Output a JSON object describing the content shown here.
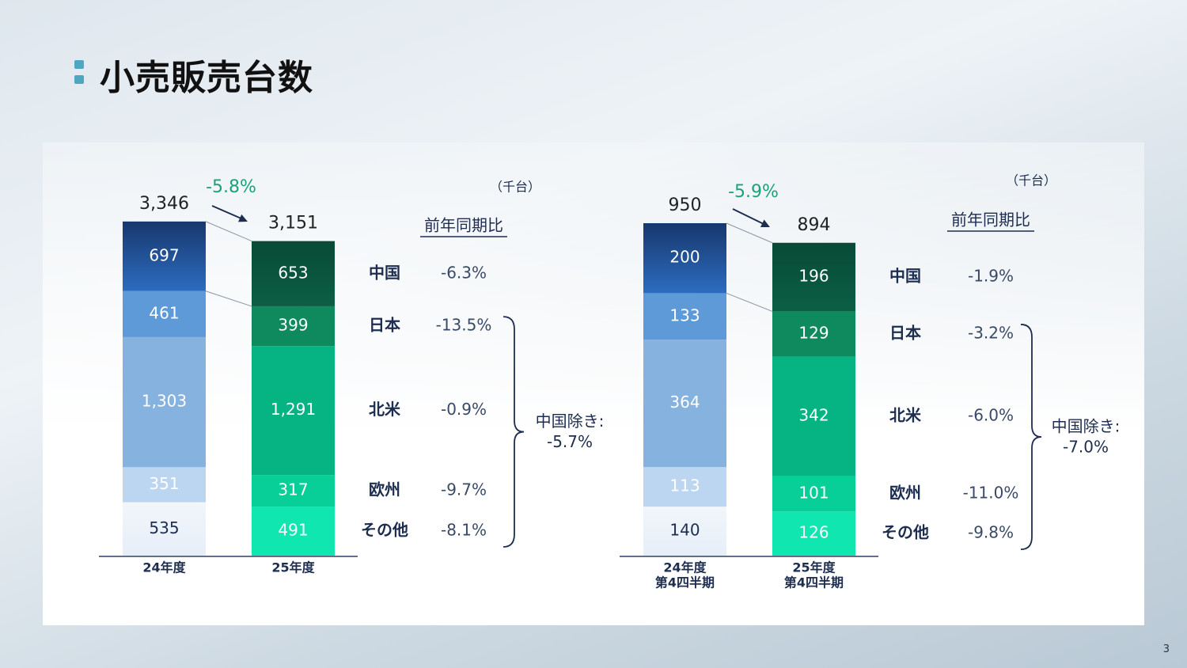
{
  "title": "小売販売台数",
  "page_number": "3",
  "colors": {
    "china_2024": "#2d6cc0",
    "japan_2024": "#5f9ad8",
    "na_2024": "#86b2e0",
    "eu_2024": "#bcd5f0",
    "other_2024": "#e6eef8",
    "china_2025": "#0b5f45",
    "japan_2025": "#0f8a5e",
    "na_2025": "#06b383",
    "eu_2025": "#08cf97",
    "other_2025": "#10e6b0",
    "accent_green": "#1aa37a",
    "label_navy": "#1d2d50"
  },
  "chart_data": [
    {
      "type": "bar",
      "stacked": true,
      "unit": "（千台）",
      "categories": [
        "24年度",
        "25年度"
      ],
      "segments": [
        "その他",
        "欧州",
        "北米",
        "日本",
        "中国"
      ],
      "series": [
        {
          "name": "中国",
          "values": [
            697,
            653
          ]
        },
        {
          "name": "日本",
          "values": [
            461,
            399
          ]
        },
        {
          "name": "北米",
          "values": [
            1303,
            1291
          ]
        },
        {
          "name": "欧州",
          "values": [
            351,
            317
          ]
        },
        {
          "name": "その他",
          "values": [
            535,
            491
          ]
        }
      ],
      "value_labels": {
        "中国": [
          "697",
          "653"
        ],
        "日本": [
          "461",
          "399"
        ],
        "北米": [
          "1,303",
          "1,291"
        ],
        "欧州": [
          "351",
          "317"
        ],
        "その他": [
          "535",
          "491"
        ]
      },
      "totals": [
        3346,
        3151
      ],
      "total_labels": [
        "3,346",
        "3,151"
      ],
      "change_label": "-5.8%",
      "yoy_header": "前年同期比",
      "yoy": [
        {
          "region": "中国",
          "value": "-6.3%"
        },
        {
          "region": "日本",
          "value": "-13.5%"
        },
        {
          "region": "北米",
          "value": "-0.9%"
        },
        {
          "region": "欧州",
          "value": "-9.7%"
        },
        {
          "region": "その他",
          "value": "-8.1%"
        }
      ],
      "excl_china_label": "中国除き:",
      "excl_china_value": "-5.7%"
    },
    {
      "type": "bar",
      "stacked": true,
      "unit": "（千台）",
      "categories": [
        "24年度\n第4四半期",
        "25年度\n第4四半期"
      ],
      "category_lines": [
        [
          "24年度",
          "第4四半期"
        ],
        [
          "25年度",
          "第4四半期"
        ]
      ],
      "series": [
        {
          "name": "中国",
          "values": [
            200,
            196
          ]
        },
        {
          "name": "日本",
          "values": [
            133,
            129
          ]
        },
        {
          "name": "北米",
          "values": [
            364,
            342
          ]
        },
        {
          "name": "欧州",
          "values": [
            113,
            101
          ]
        },
        {
          "name": "その他",
          "values": [
            140,
            126
          ]
        }
      ],
      "value_labels": {
        "中国": [
          "200",
          "196"
        ],
        "日本": [
          "133",
          "129"
        ],
        "北米": [
          "364",
          "342"
        ],
        "欧州": [
          "113",
          "101"
        ],
        "その他": [
          "140",
          "126"
        ]
      },
      "totals": [
        950,
        894
      ],
      "total_labels": [
        "950",
        "894"
      ],
      "change_label": "-5.9%",
      "yoy_header": "前年同期比",
      "yoy": [
        {
          "region": "中国",
          "value": "-1.9%"
        },
        {
          "region": "日本",
          "value": "-3.2%"
        },
        {
          "region": "北米",
          "value": "-6.0%"
        },
        {
          "region": "欧州",
          "value": "-11.0%"
        },
        {
          "region": "その他",
          "value": "-9.8%"
        }
      ],
      "excl_china_label": "中国除き:",
      "excl_china_value": "-7.0%"
    }
  ]
}
